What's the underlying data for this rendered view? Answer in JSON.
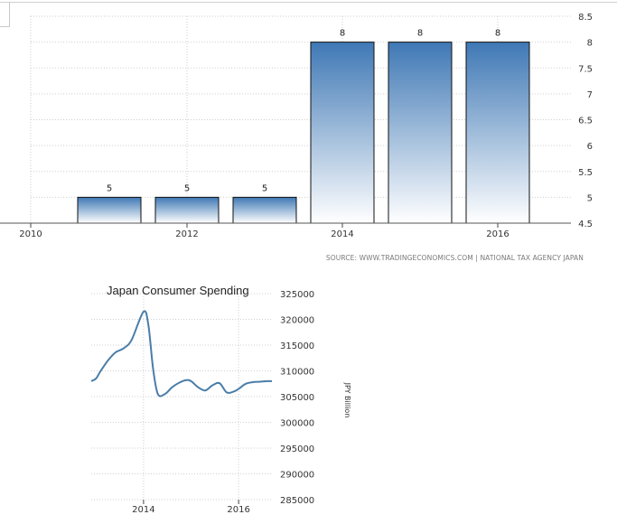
{
  "source_text": "SOURCE: WWW.TRADINGECONOMICS.COM | NATIONAL TAX AGENCY JAPAN",
  "colors": {
    "bar_top": "#3f78b5",
    "bar_bottom": "#ffffff",
    "line": "#4a7da8",
    "grid": "#cfcfcf"
  },
  "chart_data": [
    {
      "type": "bar",
      "title": "",
      "x_tick_labels": [
        "2010",
        "2012",
        "2014",
        "2016"
      ],
      "categories": [
        "2011",
        "2012",
        "2013",
        "2014",
        "2015",
        "2016"
      ],
      "values": [
        5,
        5,
        5,
        8,
        8,
        8
      ],
      "data_labels": [
        "5",
        "5",
        "5",
        "8",
        "8",
        "8"
      ],
      "ylim": [
        4.5,
        8.5
      ],
      "y_ticks": [
        "4.5",
        "5",
        "5.5",
        "6",
        "6.5",
        "7",
        "7.5",
        "8",
        "8.5"
      ],
      "y_axis_side": "right",
      "grid": true
    },
    {
      "type": "line",
      "title": "Japan Consumer Spending",
      "ylabel": "JPY Billion",
      "ylim": [
        285000,
        325000
      ],
      "y_ticks": [
        "325000",
        "320000",
        "315000",
        "310000",
        "305000",
        "300000",
        "295000",
        "290000",
        "285000"
      ],
      "x_tick_labels": [
        "2014",
        "2016"
      ],
      "x_range": [
        2012.9,
        2016.7
      ],
      "grid": true,
      "series": [
        {
          "x": [
            2012.9,
            2013.0,
            2013.1,
            2013.25,
            2013.4,
            2013.5,
            2013.6,
            2013.75,
            2014.0,
            2014.1,
            2014.2,
            2014.3,
            2014.45,
            2014.6,
            2014.75,
            2014.9,
            2015.0,
            2015.15,
            2015.3,
            2015.45,
            2015.6,
            2015.75,
            2015.9,
            2016.0,
            2016.15,
            2016.3,
            2016.45,
            2016.6,
            2016.7
          ],
          "values": [
            308000,
            308500,
            310000,
            312000,
            313500,
            314000,
            314500,
            316000,
            321500,
            319000,
            310500,
            305500,
            305500,
            306800,
            307700,
            308200,
            308000,
            306800,
            306200,
            307200,
            307600,
            305800,
            306000,
            306500,
            307500,
            307800,
            307900,
            308000,
            308000
          ]
        }
      ]
    }
  ]
}
